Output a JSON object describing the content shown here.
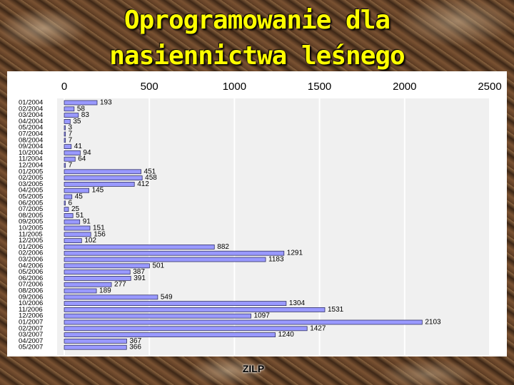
{
  "slide": {
    "title_line1": "Oprogramowanie dla",
    "title_line2": "nasiennictwa leśnego",
    "footer": "ZILP"
  },
  "colors": {
    "title": "#ffff00",
    "bar_fill": "#9999ff",
    "bar_stroke": "#333366",
    "plot_background": "#f0f0f0",
    "grid": "#ffffff"
  },
  "chart_data": {
    "type": "bar",
    "orientation": "horizontal",
    "title": "",
    "xlabel": "",
    "ylabel": "",
    "xlim": [
      0,
      2500
    ],
    "xticks": [
      0,
      500,
      1000,
      1500,
      2000,
      2500
    ],
    "x_axis_position": "top",
    "grid": true,
    "legend": "none",
    "categories": [
      "01/2004",
      "02/2004",
      "03/2004",
      "04/2004",
      "05/2004",
      "07/2004",
      "08/2004",
      "09/2004",
      "10/2004",
      "11/2004",
      "12/2004",
      "01/2005",
      "02/2005",
      "03/2005",
      "04/2005",
      "05/2005",
      "06/2005",
      "07/2005",
      "08/2005",
      "09/2005",
      "10/2005",
      "11/2005",
      "12/2005",
      "01/2006",
      "02/2006",
      "03/2006",
      "04/2006",
      "05/2006",
      "06/2006",
      "07/2006",
      "08/2006",
      "09/2006",
      "10/2006",
      "11/2006",
      "12/2006",
      "01/2007",
      "02/2007",
      "03/2007",
      "04/2007",
      "05/2007"
    ],
    "values": [
      193,
      58,
      83,
      35,
      3,
      7,
      7,
      41,
      94,
      64,
      7,
      451,
      458,
      412,
      145,
      45,
      6,
      25,
      51,
      91,
      151,
      156,
      102,
      882,
      1291,
      1183,
      501,
      387,
      391,
      277,
      189,
      549,
      1304,
      1531,
      1097,
      2103,
      1427,
      1240,
      367,
      366
    ]
  }
}
